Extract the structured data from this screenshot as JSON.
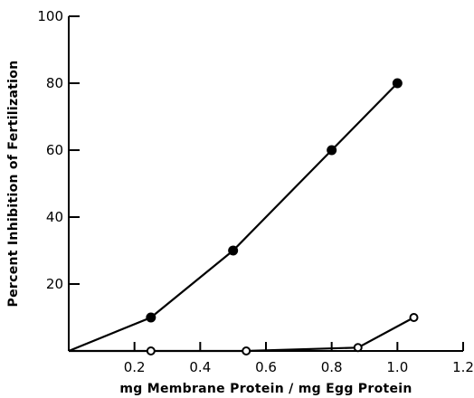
{
  "chart_data": {
    "type": "line",
    "title": "",
    "xlabel": "mg Membrane Protein / mg Egg Protein",
    "ylabel": "Percent Inhibition of Fertilization",
    "xlim": [
      0,
      1.2
    ],
    "ylim": [
      0,
      100
    ],
    "x_ticks": [
      "0.2",
      "0.4",
      "0.6",
      "0.8",
      "1.0",
      "1.2"
    ],
    "y_ticks": [
      "20",
      "40",
      "60",
      "80",
      "100"
    ],
    "grid": false,
    "series": [
      {
        "marker": "filled-circle",
        "color": "#000000",
        "points": [
          [
            0,
            0
          ],
          [
            0.25,
            10
          ],
          [
            0.5,
            30
          ],
          [
            0.8,
            60
          ],
          [
            1.0,
            80
          ]
        ]
      },
      {
        "marker": "open-circle",
        "color": "#000000",
        "points": [
          [
            0,
            0
          ],
          [
            0.25,
            0
          ],
          [
            0.54,
            0
          ],
          [
            0.88,
            1
          ],
          [
            1.05,
            10
          ]
        ]
      }
    ]
  }
}
